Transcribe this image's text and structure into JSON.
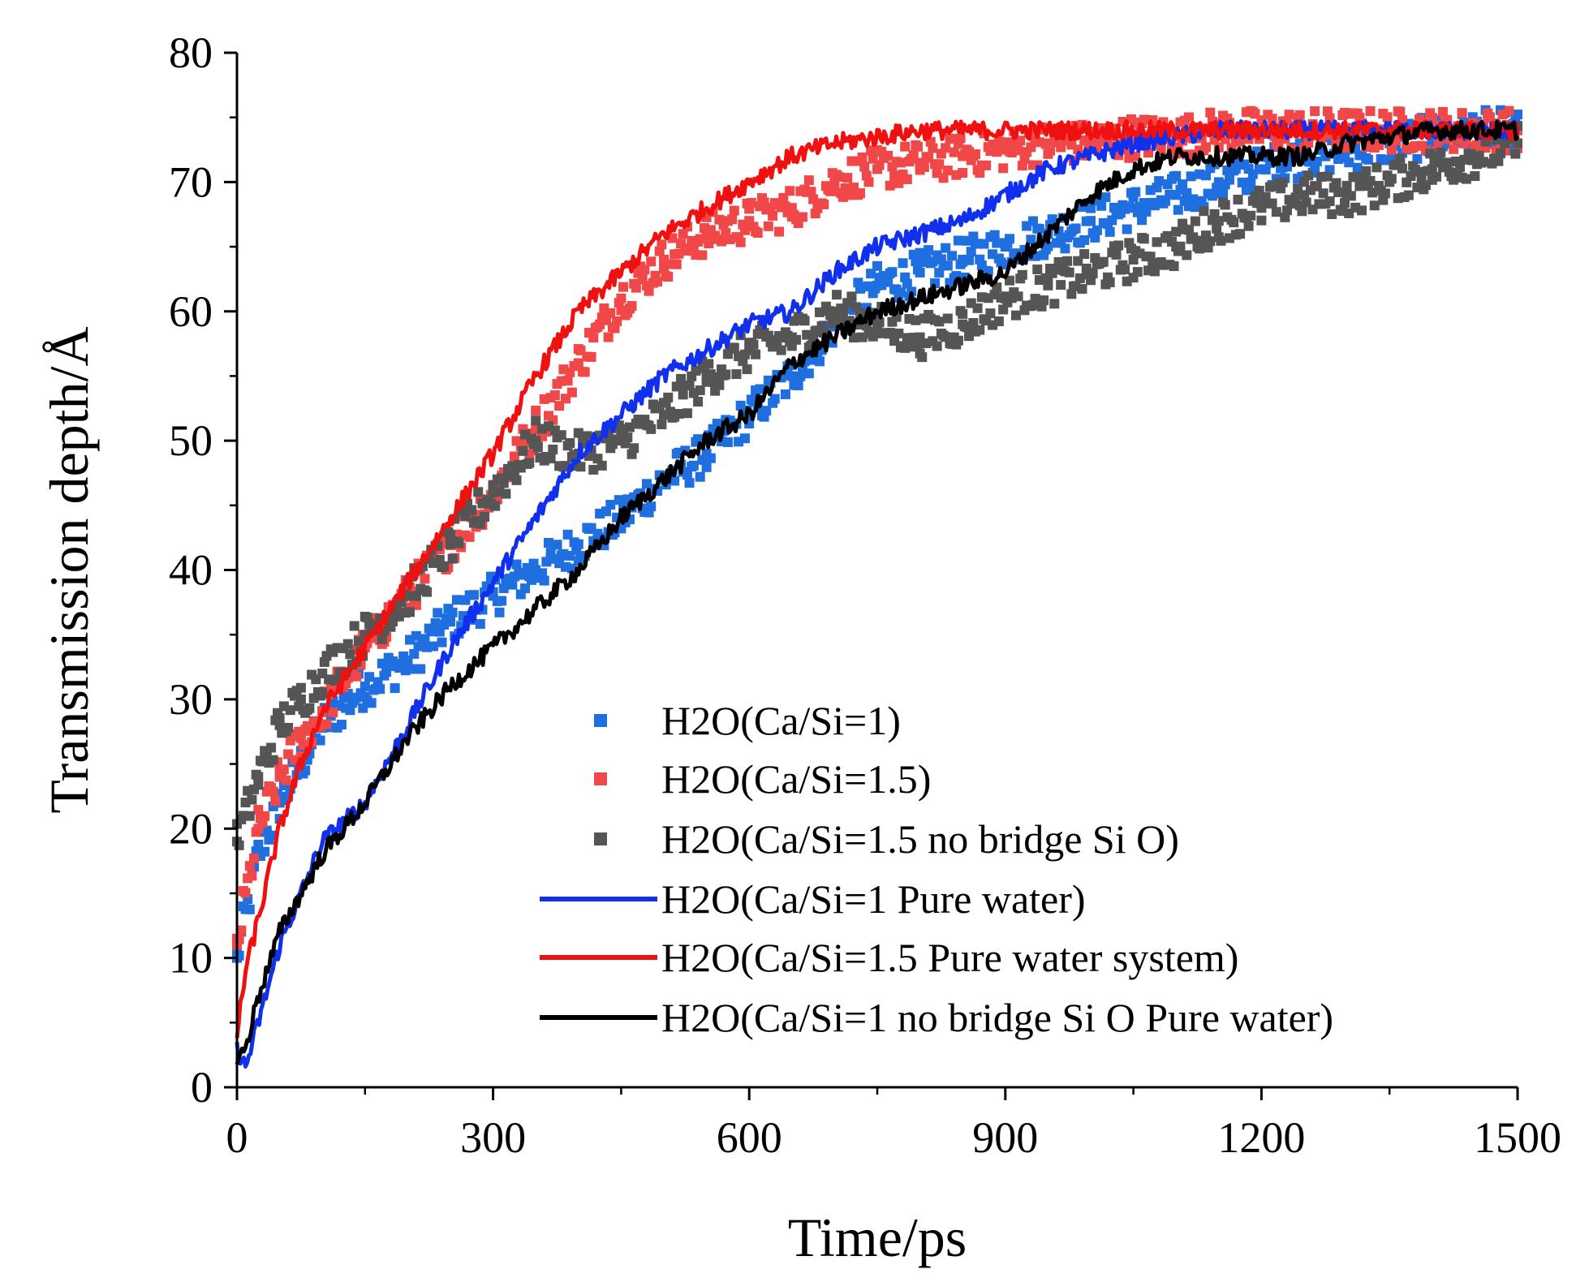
{
  "chart_data": {
    "type": "line",
    "title": "",
    "xlabel": "Time/ps",
    "ylabel": "Transmission depth/Å",
    "xlim": [
      0,
      1500
    ],
    "ylim": [
      0,
      80
    ],
    "xticks": [
      0,
      300,
      600,
      900,
      1200,
      1500
    ],
    "yticks": [
      0,
      10,
      20,
      30,
      40,
      50,
      60,
      70,
      80
    ],
    "legend_position": "bottom-right",
    "series": [
      {
        "name": "H2O(Ca/Si=1)",
        "style": "scatter",
        "color": "#1f6fe0",
        "x": [
          0,
          25,
          50,
          75,
          100,
          150,
          200,
          250,
          300,
          350,
          400,
          450,
          500,
          550,
          600,
          650,
          700,
          750,
          800,
          850,
          900,
          950,
          1000,
          1050,
          1100,
          1150,
          1200,
          1250,
          1300,
          1350,
          1400,
          1450,
          1500
        ],
        "y": [
          10,
          18,
          22,
          25,
          28,
          31,
          33,
          36,
          38,
          40,
          42,
          44,
          47,
          49,
          52,
          55,
          59,
          62,
          63,
          64,
          65,
          66,
          67,
          68,
          69,
          70,
          71,
          72,
          72.5,
          73,
          73.5,
          74,
          74
        ]
      },
      {
        "name": "H2O(Ca/Si=1.5)",
        "style": "scatter",
        "color": "#f04848",
        "x": [
          0,
          25,
          50,
          75,
          100,
          150,
          200,
          250,
          300,
          350,
          400,
          450,
          500,
          550,
          600,
          650,
          700,
          750,
          800,
          850,
          900,
          950,
          1000,
          1050,
          1100,
          1150,
          1200,
          1250,
          1300,
          1350,
          1400,
          1450,
          1500
        ],
        "y": [
          11,
          20,
          24,
          27,
          29,
          34,
          38,
          42,
          46,
          51,
          56,
          61,
          64,
          66,
          67,
          68,
          70,
          71,
          71.5,
          72,
          72.5,
          73,
          73,
          73.5,
          73.5,
          74,
          74,
          74,
          74,
          74,
          74,
          74,
          74
        ]
      },
      {
        "name": "H2O(Ca/Si=1.5 no bridge Si O)",
        "style": "scatter",
        "color": "#555555",
        "x": [
          0,
          25,
          50,
          75,
          100,
          150,
          200,
          250,
          300,
          350,
          400,
          450,
          500,
          550,
          600,
          650,
          700,
          750,
          800,
          850,
          900,
          950,
          1000,
          1050,
          1100,
          1150,
          1200,
          1250,
          1300,
          1350,
          1400,
          1450,
          1500
        ],
        "y": [
          19,
          24,
          28,
          30,
          32,
          35,
          38,
          42,
          46,
          50,
          49,
          50,
          52,
          55,
          57,
          58,
          60,
          59,
          58,
          59,
          61,
          62,
          63,
          64,
          65,
          67,
          68,
          69,
          69,
          70,
          71,
          72,
          73
        ]
      },
      {
        "name": "H2O(Ca/Si=1 Pure water)",
        "style": "line",
        "color": "#1030ee",
        "x": [
          0,
          10,
          25,
          50,
          75,
          100,
          150,
          200,
          250,
          300,
          350,
          400,
          450,
          500,
          550,
          600,
          650,
          700,
          750,
          800,
          850,
          900,
          950,
          1000,
          1050,
          1100,
          1150,
          1200,
          1250,
          1300,
          1350,
          1400,
          1450,
          1500
        ],
        "y": [
          3,
          1.5,
          5,
          11,
          15,
          19,
          22,
          28,
          34,
          39,
          44,
          49,
          52,
          55,
          57,
          59,
          60,
          63,
          65,
          66,
          67,
          69,
          71,
          72,
          73,
          73.5,
          74,
          74,
          74,
          74,
          74,
          74,
          74,
          74
        ]
      },
      {
        "name": "H2O(Ca/Si=1.5 Pure water system)",
        "style": "line",
        "color": "#f01010",
        "x": [
          0,
          10,
          25,
          50,
          75,
          100,
          150,
          200,
          250,
          300,
          350,
          400,
          450,
          500,
          550,
          600,
          650,
          700,
          750,
          800,
          850,
          900,
          950,
          1000,
          1050,
          1100,
          1150,
          1200,
          1250,
          1300,
          1350,
          1400,
          1450,
          1500
        ],
        "y": [
          4,
          9,
          13,
          20,
          25,
          29,
          34,
          39,
          44,
          49,
          55,
          60,
          63,
          66,
          68,
          70,
          72,
          73,
          73.5,
          74,
          74,
          74,
          74,
          74,
          74,
          74,
          74,
          74,
          74,
          74,
          74,
          74,
          74,
          74
        ]
      },
      {
        "name": "H2O(Ca/Si=1 no bridge Si O Pure water)",
        "style": "line",
        "color": "#000000",
        "x": [
          0,
          10,
          25,
          50,
          75,
          100,
          150,
          200,
          250,
          300,
          350,
          400,
          450,
          500,
          550,
          600,
          650,
          700,
          750,
          800,
          850,
          900,
          950,
          1000,
          1050,
          1100,
          1150,
          1200,
          1250,
          1300,
          1350,
          1400,
          1450,
          1500
        ],
        "y": [
          2,
          3,
          7,
          12,
          15,
          18,
          22,
          27,
          31,
          34,
          37,
          40,
          44,
          47,
          50,
          52,
          56,
          58,
          60,
          61,
          62,
          63,
          66,
          69,
          71,
          72,
          72,
          72,
          72,
          73,
          73.5,
          74,
          74,
          74
        ]
      }
    ]
  }
}
